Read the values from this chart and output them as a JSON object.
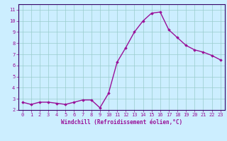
{
  "x": [
    0,
    1,
    2,
    3,
    4,
    5,
    6,
    7,
    8,
    9,
    10,
    11,
    12,
    13,
    14,
    15,
    16,
    17,
    18,
    19,
    20,
    21,
    22,
    23
  ],
  "y": [
    2.7,
    2.5,
    2.7,
    2.7,
    2.6,
    2.5,
    2.7,
    2.9,
    2.9,
    2.2,
    3.5,
    6.3,
    7.6,
    9.0,
    10.0,
    10.7,
    10.8,
    9.2,
    8.5,
    7.8,
    7.4,
    7.2,
    6.9,
    6.5
  ],
  "line_color": "#991199",
  "marker": "D",
  "marker_size": 1.8,
  "background_color": "#cceeff",
  "grid_color": "#99cccc",
  "xlabel": "Windchill (Refroidissement éolien,°C)",
  "xlim": [
    -0.5,
    23.5
  ],
  "ylim": [
    2.0,
    11.5
  ],
  "yticks": [
    2,
    3,
    4,
    5,
    6,
    7,
    8,
    9,
    10,
    11
  ],
  "xticks": [
    0,
    1,
    2,
    3,
    4,
    5,
    6,
    7,
    8,
    9,
    10,
    11,
    12,
    13,
    14,
    15,
    16,
    17,
    18,
    19,
    20,
    21,
    22,
    23
  ],
  "tick_color": "#991199",
  "label_color": "#991199",
  "spine_color": "#330066",
  "line_width": 1.0,
  "tick_fontsize": 5.0,
  "xlabel_fontsize": 5.5
}
